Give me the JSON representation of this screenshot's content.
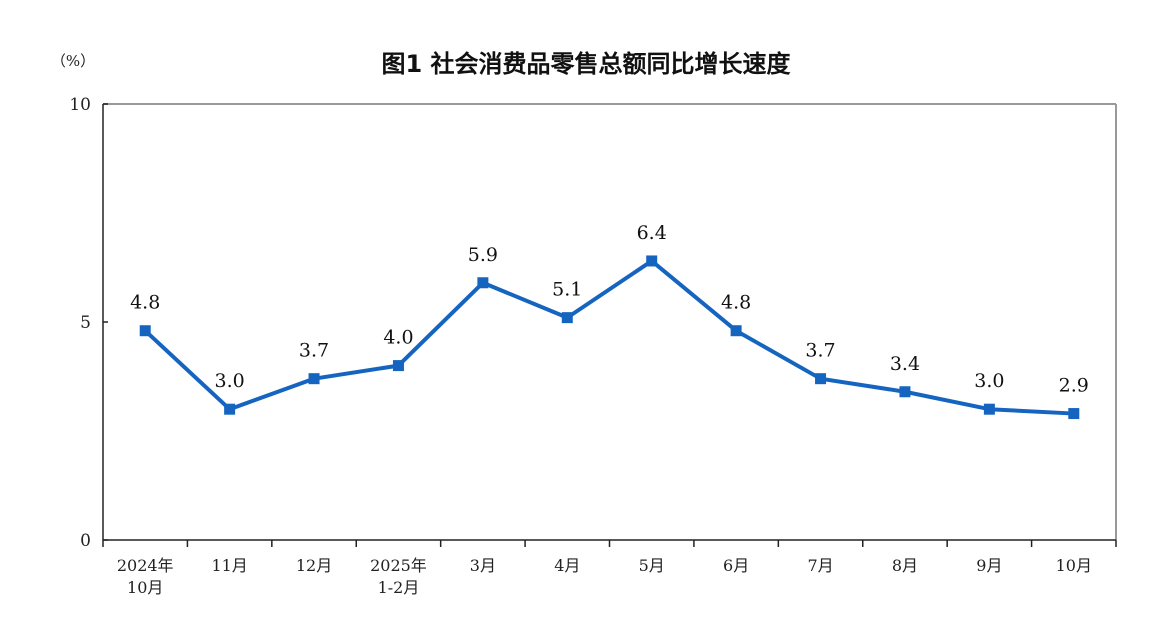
{
  "chart_data": {
    "type": "line",
    "title": "图1  社会消费品零售总额同比增长速度",
    "unit_label": "（%）",
    "xlabel": "",
    "ylabel": "",
    "ylim": [
      0,
      10
    ],
    "yticks": [
      "0",
      "5",
      "10"
    ],
    "ytick_values": [
      0,
      5,
      10
    ],
    "categories": [
      [
        "2024年",
        "10月"
      ],
      [
        "11月"
      ],
      [
        "12月"
      ],
      [
        "2025年",
        "1-2月"
      ],
      [
        "3月"
      ],
      [
        "4月"
      ],
      [
        "5月"
      ],
      [
        "6月"
      ],
      [
        "7月"
      ],
      [
        "8月"
      ],
      [
        "9月"
      ],
      [
        "10月"
      ]
    ],
    "series": [
      {
        "values": [
          4.8,
          3.0,
          3.7,
          4.0,
          5.9,
          5.1,
          6.4,
          4.8,
          3.7,
          3.4,
          3.0,
          2.9
        ],
        "data_labels": [
          "4.8",
          "3.0",
          "3.7",
          "4.0",
          "5.9",
          "5.1",
          "6.4",
          "4.8",
          "3.7",
          "3.4",
          "3.0",
          "2.9"
        ],
        "color": "#1565C0"
      }
    ],
    "grid": false,
    "legend": "none",
    "frame_color": "#999999"
  }
}
